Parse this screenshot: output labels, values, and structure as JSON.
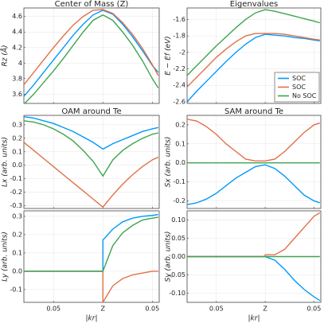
{
  "chart_data": [
    {
      "type": "line",
      "title": "Center of Mass (Z)",
      "ylabel": "Rz (Å)",
      "grid": true,
      "x": [
        -0.08,
        -0.07,
        -0.06,
        -0.05,
        -0.04,
        -0.03,
        -0.02,
        -0.01,
        0,
        0.01,
        0.02,
        0.03,
        0.04,
        0.05,
        0.056
      ],
      "xlim": [
        -0.08,
        0.057
      ],
      "xticks": [
        -0.05,
        0,
        0.05
      ],
      "ylim": [
        3.48,
        4.71
      ],
      "yticks": [
        3.6,
        3.8,
        4.0,
        4.2,
        4.4,
        4.6
      ],
      "series": [
        {
          "color": "#009afa",
          "values": [
            3.57,
            3.72,
            3.88,
            4.04,
            4.2,
            4.36,
            4.5,
            4.62,
            4.68,
            4.63,
            4.5,
            4.34,
            4.16,
            3.97,
            3.88
          ]
        },
        {
          "color": "#e36f47",
          "values": [
            3.72,
            3.88,
            4.04,
            4.2,
            4.35,
            4.49,
            4.6,
            4.68,
            4.69,
            4.64,
            4.52,
            4.37,
            4.19,
            3.98,
            3.84
          ]
        },
        {
          "color": "#3ea44e",
          "values": [
            3.47,
            3.6,
            3.75,
            3.9,
            4.06,
            4.23,
            4.4,
            4.55,
            4.62,
            4.55,
            4.4,
            4.23,
            4.03,
            3.8,
            3.68
          ]
        }
      ]
    },
    {
      "type": "line",
      "title": "Eigenvalues",
      "ylabel": "E − Ef (eV)",
      "grid": true,
      "legend": "lower right",
      "x": [
        -0.08,
        -0.07,
        -0.06,
        -0.05,
        -0.04,
        -0.03,
        -0.02,
        -0.01,
        0,
        0.01,
        0.02,
        0.03,
        0.04,
        0.05,
        0.056
      ],
      "xlim": [
        -0.08,
        0.057
      ],
      "xticks": [
        -0.05,
        0,
        0.05
      ],
      "ylim": [
        -2.62,
        -1.46
      ],
      "yticks": [
        -2.6,
        -2.4,
        -2.2,
        -2.0,
        -1.8,
        -1.6
      ],
      "series": [
        {
          "name": "SOC",
          "color": "#009afa",
          "values": [
            -2.6,
            -2.47,
            -2.35,
            -2.23,
            -2.11,
            -2.0,
            -1.9,
            -1.82,
            -1.78,
            -1.79,
            -1.8,
            -1.82,
            -1.83,
            -1.85,
            -1.86
          ]
        },
        {
          "name": "SOC",
          "color": "#e36f47",
          "values": [
            -2.42,
            -2.3,
            -2.18,
            -2.06,
            -1.96,
            -1.87,
            -1.8,
            -1.77,
            -1.77,
            -1.77,
            -1.78,
            -1.8,
            -1.82,
            -1.84,
            -1.85
          ]
        },
        {
          "name": "No SOC",
          "color": "#3ea44e",
          "values": [
            -2.28,
            -2.16,
            -2.04,
            -1.92,
            -1.81,
            -1.7,
            -1.6,
            -1.52,
            -1.48,
            -1.5,
            -1.53,
            -1.56,
            -1.59,
            -1.62,
            -1.64
          ]
        }
      ]
    },
    {
      "type": "line",
      "title": "OAM around Te",
      "ylabel": "Lx (arb. units)",
      "grid": true,
      "x": [
        -0.08,
        -0.07,
        -0.06,
        -0.05,
        -0.04,
        -0.03,
        -0.02,
        -0.01,
        0,
        0.01,
        0.02,
        0.03,
        0.04,
        0.05,
        0.056
      ],
      "xlim": [
        -0.08,
        0.057
      ],
      "xticks": [
        -0.05,
        0,
        0.05
      ],
      "ylim": [
        -0.32,
        0.37
      ],
      "yticks": [
        -0.3,
        -0.2,
        -0.1,
        {
          "value": 0,
          "label": "0.0"
        },
        0.1,
        0.2,
        0.3
      ],
      "series": [
        {
          "color": "#009afa",
          "values": [
            0.36,
            0.35,
            0.33,
            0.31,
            0.28,
            0.25,
            0.21,
            0.17,
            0.12,
            0.16,
            0.19,
            0.22,
            0.25,
            0.27,
            0.28
          ]
        },
        {
          "color": "#e36f47",
          "values": [
            0.17,
            0.11,
            0.05,
            -0.01,
            -0.07,
            -0.13,
            -0.19,
            -0.25,
            -0.31,
            -0.22,
            -0.14,
            -0.07,
            -0.01,
            0.04,
            0.06
          ]
        },
        {
          "color": "#3ea44e",
          "values": [
            0.33,
            0.32,
            0.3,
            0.27,
            0.23,
            0.18,
            0.11,
            0.03,
            -0.08,
            0.04,
            0.11,
            0.16,
            0.2,
            0.23,
            0.24
          ]
        }
      ]
    },
    {
      "type": "line",
      "title": "SAM around Te",
      "ylabel": "Sx (arb. units)",
      "grid": true,
      "x": [
        -0.08,
        -0.07,
        -0.06,
        -0.05,
        -0.04,
        -0.03,
        -0.02,
        -0.01,
        0,
        0.01,
        0.02,
        0.03,
        0.04,
        0.05,
        0.056
      ],
      "xlim": [
        -0.08,
        0.057
      ],
      "xticks": [
        -0.05,
        0,
        0.05
      ],
      "ylim": [
        -0.24,
        0.25
      ],
      "yticks": [
        -0.2,
        -0.1,
        {
          "value": 0,
          "label": "0.0"
        },
        0.1,
        0.2
      ],
      "series": [
        {
          "color": "#009afa",
          "values": [
            -0.22,
            -0.21,
            -0.19,
            -0.16,
            -0.12,
            -0.08,
            -0.05,
            -0.02,
            -0.01,
            -0.03,
            -0.07,
            -0.12,
            -0.17,
            -0.2,
            -0.21
          ]
        },
        {
          "color": "#e36f47",
          "values": [
            0.23,
            0.22,
            0.19,
            0.15,
            0.1,
            0.06,
            0.02,
            0.01,
            0.01,
            0.02,
            0.06,
            0.11,
            0.16,
            0.2,
            0.21
          ]
        },
        {
          "color": "#3ea44e",
          "values": [
            0,
            0,
            0,
            0,
            0,
            0,
            0,
            0,
            0,
            0,
            0,
            0,
            0,
            0,
            0
          ]
        }
      ]
    },
    {
      "type": "line",
      "ylabel": "Ly (arb. units)",
      "xlabel": "|kr|",
      "grid": true,
      "x": [
        -0.08,
        -0.07,
        -0.06,
        -0.05,
        -0.04,
        -0.03,
        -0.02,
        -0.01,
        0,
        0,
        0.01,
        0.02,
        0.03,
        0.04,
        0.05,
        0.056
      ],
      "xlim": [
        -0.08,
        0.057
      ],
      "xticks": [
        {
          "value": -0.05,
          "label": "0.05"
        },
        {
          "value": 0,
          "label": "Z"
        },
        {
          "value": 0.05,
          "label": "0.05"
        }
      ],
      "ylim": [
        -0.17,
        0.33
      ],
      "yticks": [
        -0.1,
        {
          "value": 0,
          "label": "0.0"
        },
        0.1,
        0.2,
        0.3
      ],
      "series": [
        {
          "color": "#009afa",
          "values": [
            0,
            0,
            0,
            0,
            0,
            0,
            0,
            0,
            0,
            0.17,
            0.23,
            0.27,
            0.29,
            0.3,
            0.305,
            0.31
          ]
        },
        {
          "color": "#e36f47",
          "values": [
            0,
            0,
            0,
            0,
            0,
            0,
            0,
            0,
            0,
            -0.17,
            -0.08,
            -0.04,
            -0.02,
            -0.01,
            0,
            0
          ]
        },
        {
          "color": "#3ea44e",
          "values": [
            0,
            0,
            0,
            0,
            0,
            0,
            0,
            0,
            0,
            0,
            0.14,
            0.21,
            0.25,
            0.28,
            0.29,
            0.295
          ]
        }
      ]
    },
    {
      "type": "line",
      "ylabel": "Sy (arb. units)",
      "xlabel": "|kr|",
      "grid": true,
      "x": [
        -0.08,
        -0.07,
        -0.06,
        -0.05,
        -0.04,
        -0.03,
        -0.02,
        -0.01,
        0,
        0,
        0.01,
        0.02,
        0.03,
        0.04,
        0.05,
        0.056
      ],
      "xlim": [
        -0.08,
        0.057
      ],
      "xticks": [
        {
          "value": -0.05,
          "label": "0.05"
        },
        {
          "value": 0,
          "label": "Z"
        },
        {
          "value": 0.05,
          "label": "0.05"
        }
      ],
      "ylim": [
        -0.125,
        0.125
      ],
      "yticks": [
        {
          "value": -0.1,
          "label": "-0.10"
        },
        {
          "value": -0.05,
          "label": "-0.05"
        },
        {
          "value": 0,
          "label": "0.00"
        },
        {
          "value": 0.05,
          "label": "0.05"
        },
        {
          "value": 0.1,
          "label": "0.10"
        }
      ],
      "series": [
        {
          "color": "#009afa",
          "values": [
            0,
            0,
            0,
            0,
            0,
            0,
            0,
            0,
            0,
            0,
            -0.01,
            -0.035,
            -0.065,
            -0.09,
            -0.11,
            -0.12
          ]
        },
        {
          "color": "#e36f47",
          "values": [
            0,
            0,
            0,
            0,
            0,
            0,
            0,
            0,
            0,
            0.005,
            0.005,
            0.02,
            0.05,
            0.08,
            0.11,
            0.12
          ]
        },
        {
          "color": "#3ea44e",
          "values": [
            0,
            0,
            0,
            0,
            0,
            0,
            0,
            0,
            0,
            0,
            0,
            0,
            0,
            0,
            0,
            0
          ]
        }
      ]
    }
  ]
}
